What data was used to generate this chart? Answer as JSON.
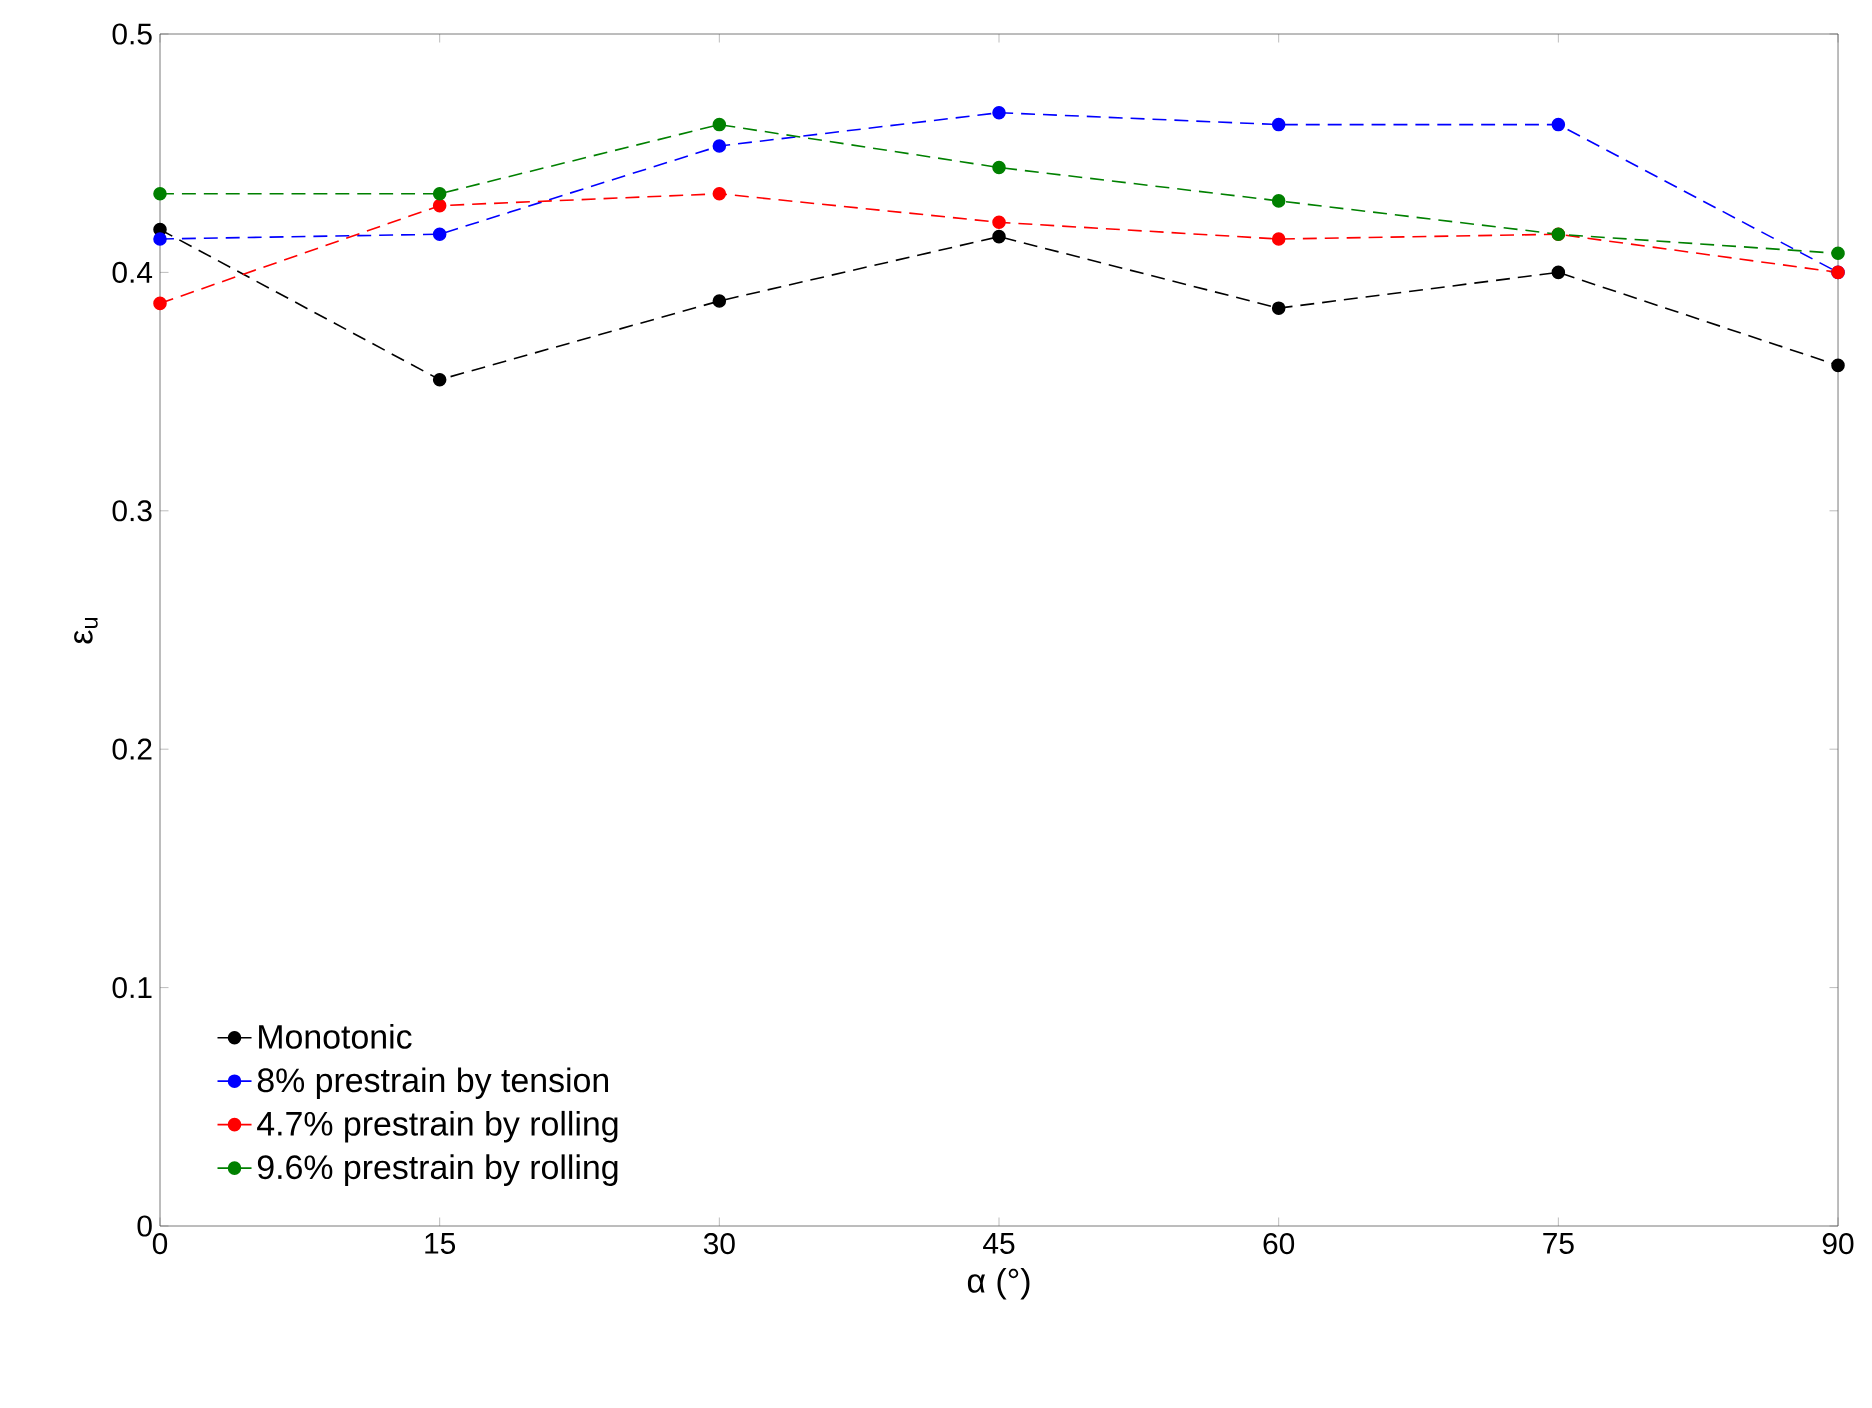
{
  "chart_data": {
    "type": "line",
    "xlabel": "α (°)",
    "ylabel": "ε$_{u}$",
    "x": [
      0,
      15,
      30,
      45,
      60,
      75,
      90
    ],
    "series": [
      {
        "name": "Monotonic",
        "color": "#000000",
        "values": [
          0.418,
          0.355,
          0.388,
          0.415,
          0.385,
          0.4,
          0.361
        ]
      },
      {
        "name": "8% prestrain by tension",
        "color": "#0000ff",
        "values": [
          0.414,
          0.416,
          0.453,
          0.467,
          0.462,
          0.462,
          0.4
        ]
      },
      {
        "name": "4.7% prestrain by rolling",
        "color": "#ff0000",
        "values": [
          0.387,
          0.428,
          0.433,
          0.421,
          0.414,
          0.416,
          0.4
        ]
      },
      {
        "name": "9.6% prestrain by rolling",
        "color": "#008000",
        "values": [
          0.433,
          0.433,
          0.462,
          0.444,
          0.43,
          0.416,
          0.408
        ]
      }
    ],
    "xlim": [
      0,
      90
    ],
    "xticks": [
      0,
      15,
      30,
      45,
      60,
      75,
      90
    ],
    "ylim": [
      0,
      0.5
    ],
    "yticks": [
      0,
      0.1,
      0.2,
      0.3,
      0.4,
      0.5
    ],
    "grid": false,
    "legend": "bottom left",
    "marker": "circle",
    "line_style": "dashed"
  }
}
